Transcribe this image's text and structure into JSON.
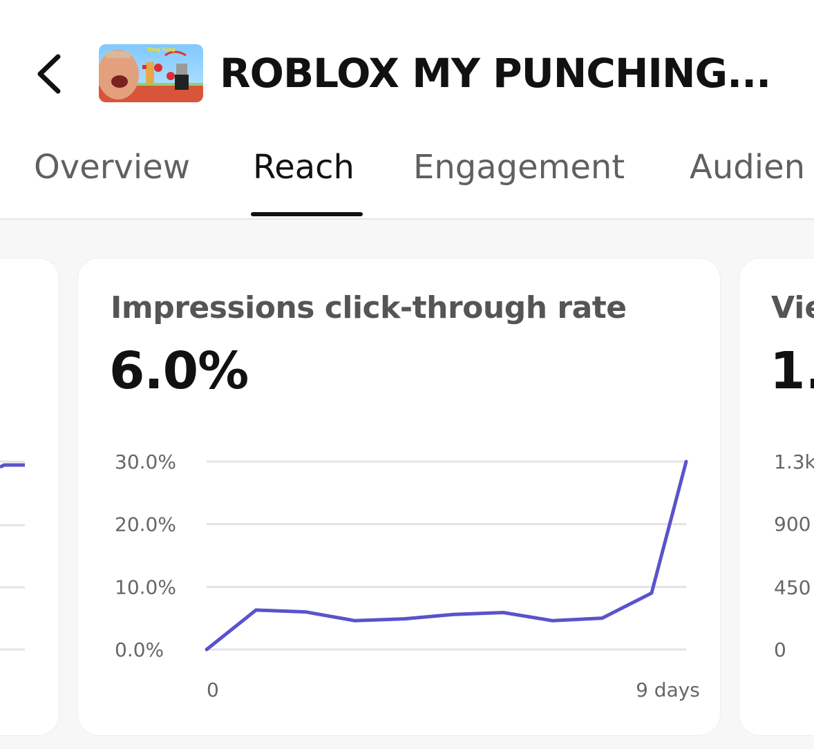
{
  "header": {
    "back_icon": "chevron-left-icon",
    "video_title": "ROBLOX MY PUNCHING..."
  },
  "tabs": [
    {
      "label": "Overview",
      "active": false
    },
    {
      "label": "Reach",
      "active": true
    },
    {
      "label": "Engagement",
      "active": false
    },
    {
      "label": "Audien",
      "active": false
    }
  ],
  "colors": {
    "accent_line": "#5b52cc",
    "grid": "#e3e3e3",
    "text_primary": "#111111",
    "text_secondary": "#606060"
  },
  "cards": {
    "main": {
      "title": "Impressions click-through rate",
      "value": "6.0%"
    },
    "right": {
      "title": "Vie",
      "value": "1.",
      "y_ticks": [
        "1.3k",
        "900",
        "450",
        "0"
      ]
    }
  },
  "chart_data": [
    {
      "type": "line",
      "title": "Impressions click-through rate",
      "xlabel": "",
      "ylabel": "",
      "x_tick_labels": [
        "0",
        "9 days"
      ],
      "y_tick_labels": [
        "30.0%",
        "20.0%",
        "10.0%",
        "0.0%"
      ],
      "ylim": [
        0,
        30
      ],
      "grid": true,
      "series": [
        {
          "x": [
            0,
            1,
            2,
            3,
            4,
            5,
            6,
            7,
            8,
            9,
            9.7
          ],
          "y": [
            0.0,
            6.3,
            6.0,
            4.6,
            4.9,
            5.6,
            5.9,
            4.6,
            5.0,
            9.0,
            30.0
          ]
        }
      ]
    }
  ]
}
